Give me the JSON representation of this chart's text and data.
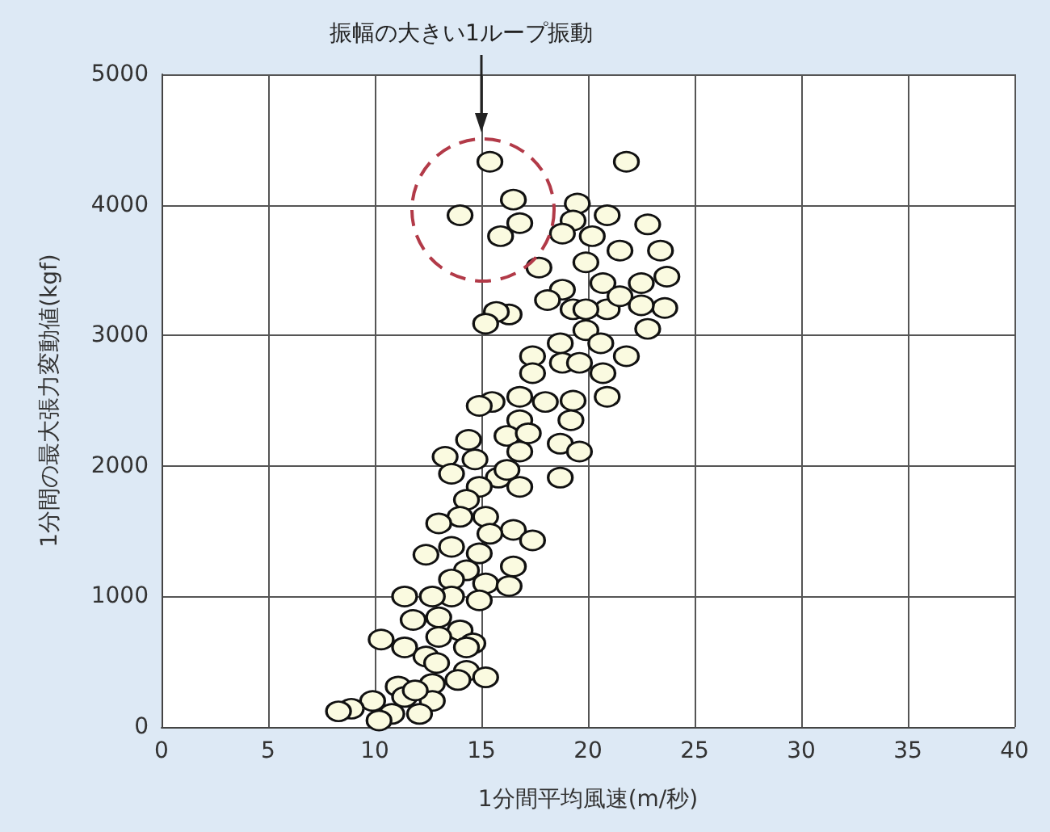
{
  "chart_data": {
    "type": "scatter",
    "xlabel": "1分間平均風速(m/秒)",
    "ylabel": "1分間の最大張力変動値(kgf)",
    "annotations": [
      "振幅の大きい1ループ振動"
    ],
    "xlim": [
      0,
      40
    ],
    "xticks": [
      0,
      5,
      10,
      15,
      20,
      25,
      30,
      35,
      40
    ],
    "ylim": [
      0,
      5000
    ],
    "yticks": [
      0,
      1000,
      2000,
      3000,
      4000,
      5000
    ],
    "grid": true,
    "marker": "circle",
    "series": [
      {
        "color": "#fafae0",
        "x": [
          15.4,
          21.8,
          14.0,
          16.5,
          16.8,
          15.9,
          19.5,
          19.3,
          20.9,
          22.8,
          23.4,
          23.7,
          23.6,
          21.5,
          19.9,
          17.7,
          18.8,
          20.7,
          22.5,
          18.1,
          19.3,
          20.9,
          19.9,
          22.8,
          16.3,
          15.7,
          15.2,
          18.7,
          20.6,
          21.8,
          17.4,
          18.8,
          20.7,
          17.4,
          20.9,
          19.3,
          18.0,
          16.8,
          15.5,
          14.9,
          19.2,
          18.7,
          19.6,
          18.7,
          16.8,
          16.2,
          16.8,
          14.4,
          14.7,
          13.3,
          13.6,
          15.8,
          14.9,
          16.8,
          14.3,
          15.2,
          14.0,
          13.0,
          16.5,
          15.4,
          17.4,
          13.6,
          14.9,
          12.4,
          16.5,
          14.3,
          13.6,
          15.2,
          16.3,
          13.6,
          11.4,
          12.7,
          14.9,
          11.8,
          13.0,
          14.0,
          13.0,
          10.3,
          11.4,
          14.6,
          12.4,
          12.9,
          14.3,
          15.2,
          13.9,
          12.7,
          11.1,
          11.4,
          12.7,
          9.9,
          12.1,
          10.8,
          8.9,
          8.3,
          10.2,
          11.9,
          14.3,
          16.2,
          17.2,
          19.6,
          19.9,
          21.5,
          22.5,
          20.2,
          18.8
        ],
        "values": [
          4330,
          4330,
          3920,
          4040,
          3860,
          3760,
          4010,
          3880,
          3920,
          3850,
          3650,
          3450,
          3210,
          3650,
          3560,
          3520,
          3350,
          3400,
          3400,
          3270,
          3200,
          3200,
          3040,
          3050,
          3160,
          3180,
          3090,
          2940,
          2940,
          2840,
          2840,
          2790,
          2710,
          2710,
          2530,
          2500,
          2490,
          2530,
          2490,
          2460,
          2350,
          2170,
          2110,
          1910,
          2350,
          2230,
          2110,
          2200,
          2050,
          2070,
          1940,
          1910,
          1840,
          1840,
          1740,
          1610,
          1610,
          1560,
          1510,
          1480,
          1430,
          1380,
          1330,
          1320,
          1230,
          1200,
          1130,
          1100,
          1080,
          1000,
          1000,
          1000,
          970,
          820,
          840,
          740,
          690,
          670,
          610,
          640,
          540,
          490,
          430,
          380,
          360,
          330,
          310,
          230,
          200,
          200,
          100,
          100,
          140,
          120,
          50,
          280,
          610,
          1970,
          2250,
          2790,
          3200,
          3300,
          3230,
          3760,
          3780
        ]
      }
    ]
  }
}
